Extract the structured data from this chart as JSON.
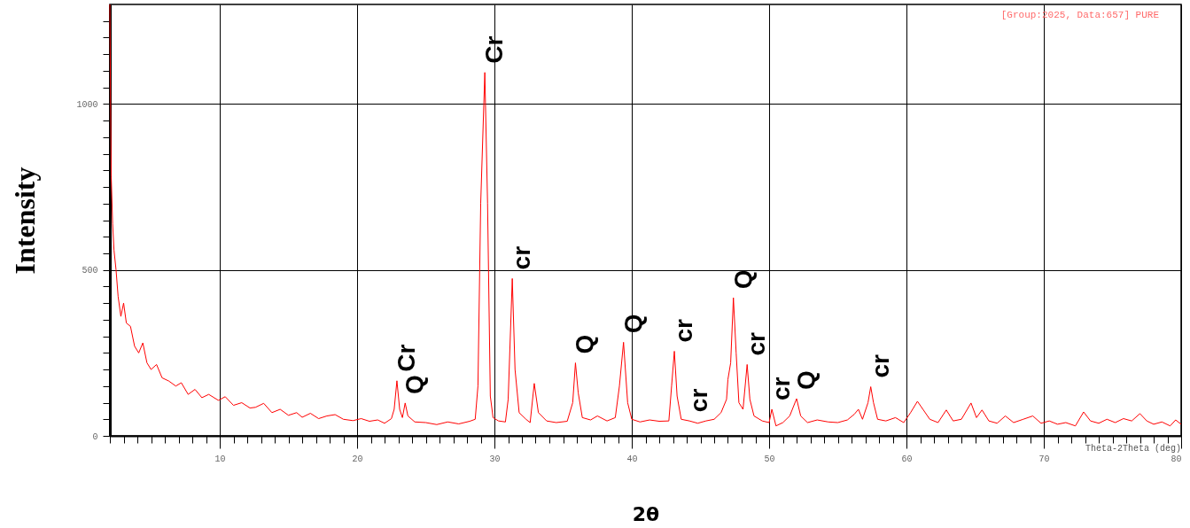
{
  "chart_data": {
    "type": "line",
    "xlabel": "2θ",
    "ylabel": "Intensity",
    "x": [
      2.0,
      2.05,
      2.1,
      2.2,
      2.3,
      2.45,
      2.6,
      2.8,
      3.0,
      3.2,
      3.5,
      3.8,
      4.1,
      4.4,
      4.7,
      5.0,
      5.4,
      5.8,
      6.3,
      6.8,
      7.2,
      7.7,
      8.2,
      8.7,
      9.2,
      9.9,
      10.4,
      11.0,
      11.6,
      12.2,
      12.6,
      13.2,
      13.8,
      14.4,
      15.0,
      15.6,
      16.0,
      16.6,
      17.2,
      17.8,
      18.4,
      19.0,
      19.7,
      20.3,
      20.9,
      21.5,
      22.0,
      22.5,
      22.7,
      22.9,
      23.1,
      23.3,
      23.5,
      23.7,
      24.2,
      25.0,
      25.8,
      26.6,
      27.4,
      28.2,
      28.6,
      28.8,
      29.0,
      29.3,
      29.5,
      29.7,
      29.9,
      30.3,
      30.8,
      31.0,
      31.3,
      31.5,
      31.8,
      32.3,
      32.6,
      32.9,
      33.2,
      33.8,
      34.5,
      35.3,
      35.7,
      35.9,
      36.1,
      36.4,
      37.0,
      37.5,
      38.2,
      38.8,
      39.1,
      39.4,
      39.7,
      40.0,
      40.6,
      41.3,
      42.0,
      42.7,
      42.9,
      43.1,
      43.3,
      43.6,
      44.2,
      44.8,
      45.4,
      46.0,
      46.5,
      46.9,
      47.0,
      47.2,
      47.4,
      47.6,
      47.8,
      48.1,
      48.4,
      48.6,
      48.9,
      49.5,
      50.0,
      50.2,
      50.5,
      51.0,
      51.5,
      52.0,
      52.3,
      52.8,
      53.5,
      54.3,
      55.0,
      55.7,
      56.2,
      56.5,
      56.8,
      57.2,
      57.4,
      57.6,
      57.9,
      58.5,
      59.2,
      59.8,
      60.3,
      60.8,
      61.2,
      61.7,
      62.3,
      62.9,
      63.4,
      64.0,
      64.7,
      65.1,
      65.5,
      66.0,
      66.6,
      67.2,
      67.8,
      68.5,
      69.2,
      69.8,
      70.4,
      71.0,
      71.6,
      72.3,
      72.9,
      73.4,
      74.0,
      74.6,
      75.2,
      75.8,
      76.4,
      77.0,
      77.5,
      78.0,
      78.6,
      79.2,
      79.6,
      80.0
    ],
    "series": [
      {
        "color": "#ff0000",
        "values": [
          1300,
          1000,
          780,
          640,
          560,
          500,
          420,
          360,
          400,
          340,
          330,
          270,
          250,
          280,
          220,
          200,
          215,
          175,
          165,
          150,
          160,
          125,
          140,
          115,
          125,
          107,
          118,
          92,
          100,
          84,
          86,
          98,
          70,
          80,
          62,
          70,
          56,
          68,
          52,
          60,
          64,
          50,
          46,
          52,
          44,
          48,
          38,
          52,
          80,
          166,
          80,
          55,
          99,
          60,
          42,
          40,
          34,
          42,
          36,
          44,
          50,
          150,
          700,
          1095,
          700,
          120,
          55,
          45,
          42,
          110,
          474,
          200,
          70,
          50,
          40,
          158,
          70,
          45,
          40,
          44,
          100,
          220,
          130,
          55,
          48,
          60,
          45,
          55,
          150,
          282,
          100,
          50,
          42,
          48,
          44,
          45,
          150,
          255,
          120,
          50,
          45,
          38,
          45,
          50,
          70,
          110,
          170,
          220,
          416,
          250,
          100,
          80,
          215,
          110,
          60,
          45,
          40,
          80,
          30,
          40,
          60,
          112,
          60,
          40,
          48,
          42,
          40,
          48,
          65,
          80,
          50,
          100,
          148,
          100,
          50,
          45,
          55,
          40,
          70,
          104,
          80,
          50,
          40,
          78,
          45,
          50,
          99,
          55,
          78,
          45,
          38,
          60,
          40,
          50,
          60,
          38,
          45,
          35,
          40,
          30,
          72,
          45,
          38,
          50,
          40,
          52,
          45,
          67,
          45,
          35,
          42,
          30,
          48,
          35
        ]
      }
    ],
    "xlim": [
      2,
      80
    ],
    "xticks": [
      {
        "value": 2,
        "label": null
      },
      {
        "value": 3,
        "label": null
      },
      {
        "value": 4,
        "label": null
      },
      {
        "value": 5,
        "label": null
      },
      {
        "value": 6,
        "label": null
      },
      {
        "value": 7,
        "label": null
      },
      {
        "value": 8,
        "label": null
      },
      {
        "value": 9,
        "label": null
      },
      10,
      {
        "value": 11,
        "label": null
      },
      {
        "value": 12,
        "label": null
      },
      {
        "value": 13,
        "label": null
      },
      {
        "value": 14,
        "label": null
      },
      {
        "value": 15,
        "label": null
      },
      {
        "value": 16,
        "label": null
      },
      {
        "value": 17,
        "label": null
      },
      {
        "value": 18,
        "label": null
      },
      {
        "value": 19,
        "label": null
      },
      20,
      {
        "value": 21,
        "label": null
      },
      {
        "value": 22,
        "label": null
      },
      {
        "value": 23,
        "label": null
      },
      {
        "value": 24,
        "label": null
      },
      {
        "value": 25,
        "label": null
      },
      {
        "value": 26,
        "label": null
      },
      {
        "value": 27,
        "label": null
      },
      {
        "value": 28,
        "label": null
      },
      {
        "value": 29,
        "label": null
      },
      30,
      {
        "value": 31,
        "label": null
      },
      {
        "value": 32,
        "label": null
      },
      {
        "value": 33,
        "label": null
      },
      {
        "value": 34,
        "label": null
      },
      {
        "value": 35,
        "label": null
      },
      {
        "value": 36,
        "label": null
      },
      {
        "value": 37,
        "label": null
      },
      {
        "value": 38,
        "label": null
      },
      {
        "value": 39,
        "label": null
      },
      40,
      {
        "value": 41,
        "label": null
      },
      {
        "value": 42,
        "label": null
      },
      {
        "value": 43,
        "label": null
      },
      {
        "value": 44,
        "label": null
      },
      {
        "value": 45,
        "label": null
      },
      {
        "value": 46,
        "label": null
      },
      {
        "value": 47,
        "label": null
      },
      {
        "value": 48,
        "label": null
      },
      {
        "value": 49,
        "label": null
      },
      50,
      {
        "value": 51,
        "label": null
      },
      {
        "value": 52,
        "label": null
      },
      {
        "value": 53,
        "label": null
      },
      {
        "value": 54,
        "label": null
      },
      {
        "value": 55,
        "label": null
      },
      {
        "value": 56,
        "label": null
      },
      {
        "value": 57,
        "label": null
      },
      {
        "value": 58,
        "label": null
      },
      {
        "value": 59,
        "label": null
      },
      60,
      {
        "value": 61,
        "label": null
      },
      {
        "value": 62,
        "label": null
      },
      {
        "value": 63,
        "label": null
      },
      {
        "value": 64,
        "label": null
      },
      {
        "value": 65,
        "label": null
      },
      {
        "value": 66,
        "label": null
      },
      {
        "value": 67,
        "label": null
      },
      {
        "value": 68,
        "label": null
      },
      {
        "value": 69,
        "label": null
      },
      70,
      {
        "value": 71,
        "label": null
      },
      {
        "value": 72,
        "label": null
      },
      {
        "value": 73,
        "label": null
      },
      {
        "value": 74,
        "label": null
      },
      {
        "value": 75,
        "label": null
      },
      {
        "value": 76,
        "label": null
      },
      {
        "value": 77,
        "label": null
      },
      {
        "value": 78,
        "label": null
      },
      {
        "value": 79,
        "label": null
      },
      80
    ],
    "ylim": [
      0,
      1300
    ],
    "yticks": [
      0,
      {
        "value": 50,
        "label": null
      },
      {
        "value": 100,
        "label": null
      },
      {
        "value": 150,
        "label": null
      },
      {
        "value": 200,
        "label": null
      },
      {
        "value": 250,
        "label": null
      },
      {
        "value": 300,
        "label": null
      },
      {
        "value": 350,
        "label": null
      },
      {
        "value": 400,
        "label": null
      },
      {
        "value": 450,
        "label": null
      },
      500,
      {
        "value": 550,
        "label": null
      },
      {
        "value": 600,
        "label": null
      },
      {
        "value": 650,
        "label": null
      },
      {
        "value": 700,
        "label": null
      },
      {
        "value": 750,
        "label": null
      },
      {
        "value": 800,
        "label": null
      },
      {
        "value": 850,
        "label": null
      },
      {
        "value": 900,
        "label": null
      },
      {
        "value": 950,
        "label": null
      },
      1000,
      {
        "value": 1050,
        "label": null
      },
      {
        "value": 1100,
        "label": null
      },
      {
        "value": 1150,
        "label": null
      },
      {
        "value": 1200,
        "label": null
      },
      {
        "value": 1250,
        "label": null
      }
    ],
    "grid": true,
    "marker": "none",
    "line_style": "solid",
    "annotations": [
      "[Group:2025, Data:657] PURE",
      "Theta-2Theta (deg)",
      {
        "text": "Q",
        "x": 23.5,
        "y": 99
      },
      {
        "text": "Cr",
        "x": 22.9,
        "y": 166
      },
      {
        "text": "Cr",
        "x": 29.3,
        "y": 1095
      },
      {
        "text": "cr",
        "x": 31.3,
        "y": 474
      },
      {
        "text": "Q",
        "x": 35.9,
        "y": 220
      },
      {
        "text": "Q",
        "x": 39.4,
        "y": 282
      },
      {
        "text": "cr",
        "x": 43.1,
        "y": 255
      },
      {
        "text": "cr",
        "x": 44.2,
        "y": 45
      },
      {
        "text": "Q",
        "x": 47.4,
        "y": 416
      },
      {
        "text": "cr",
        "x": 48.4,
        "y": 215
      },
      {
        "text": "cr",
        "x": 50.2,
        "y": 80
      },
      {
        "text": "Q",
        "x": 52.0,
        "y": 112
      },
      {
        "text": "cr",
        "x": 57.4,
        "y": 148
      }
    ]
  }
}
